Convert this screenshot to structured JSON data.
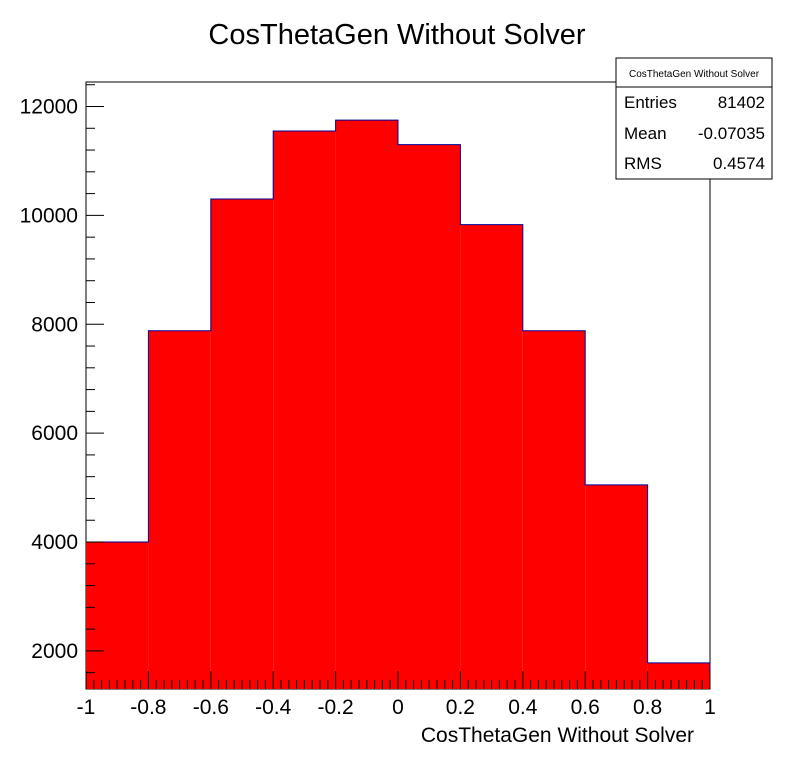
{
  "chart_data": {
    "type": "bar",
    "title": "CosThetaGen Without Solver",
    "xlabel": "CosThetaGen Without Solver",
    "ylabel": "",
    "xlim": [
      -1,
      1
    ],
    "ylim": [
      1300,
      12450
    ],
    "bin_edges": [
      -1,
      -0.8,
      -0.6,
      -0.4,
      -0.2,
      0,
      0.2,
      0.4,
      0.6,
      0.8,
      1
    ],
    "values": [
      4000,
      7880,
      10300,
      11550,
      11750,
      11300,
      9830,
      7880,
      5050,
      1780
    ],
    "x_ticks": [
      "-1",
      "-0.8",
      "-0.6",
      "-0.4",
      "-0.2",
      "0",
      "0.2",
      "0.4",
      "0.6",
      "0.8",
      "1"
    ],
    "y_ticks": [
      2000,
      4000,
      6000,
      8000,
      10000,
      12000
    ],
    "y_tick_labels": [
      "2000",
      "4000",
      "6000",
      "8000",
      "10000",
      "12000"
    ],
    "fill_color": "#ff0000",
    "line_color": "#000099",
    "legend_position": "top-right",
    "stats_box": {
      "title": "CosThetaGen Without Solver",
      "rows": [
        {
          "label": "Entries",
          "value": "81402"
        },
        {
          "label": "Mean",
          "value": "-0.07035"
        },
        {
          "label": "RMS",
          "value": "0.4574"
        }
      ]
    }
  }
}
